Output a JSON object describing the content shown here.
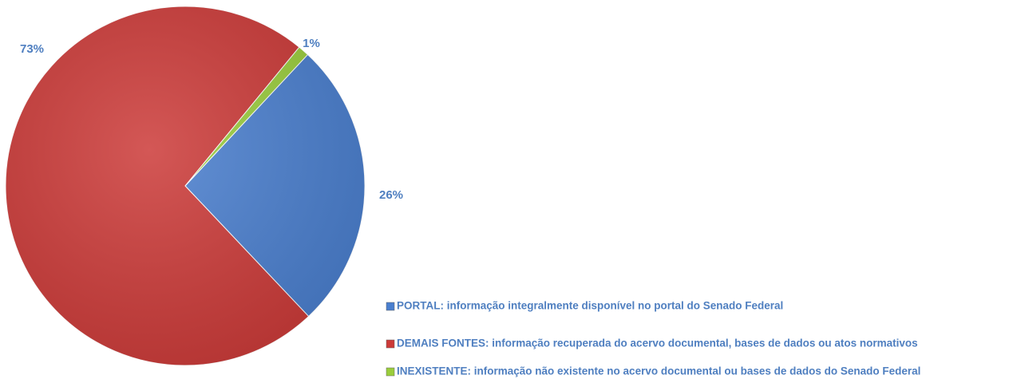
{
  "chart_data": {
    "type": "pie",
    "categories": [
      "PORTAL: informação integralmente disponível no portal do Senado Federal",
      "DEMAIS FONTES: informação recuperada do acervo documental, bases de dados ou atos normativos",
      "INEXISTENTE: informação não existente no acervo documental ou bases de dados do Senado Federal"
    ],
    "values": [
      26,
      73,
      1
    ],
    "value_labels": [
      "26%",
      "73%",
      "1%"
    ],
    "colors": [
      "#4a7fcf",
      "#cc3a38",
      "#9acd3c"
    ]
  }
}
